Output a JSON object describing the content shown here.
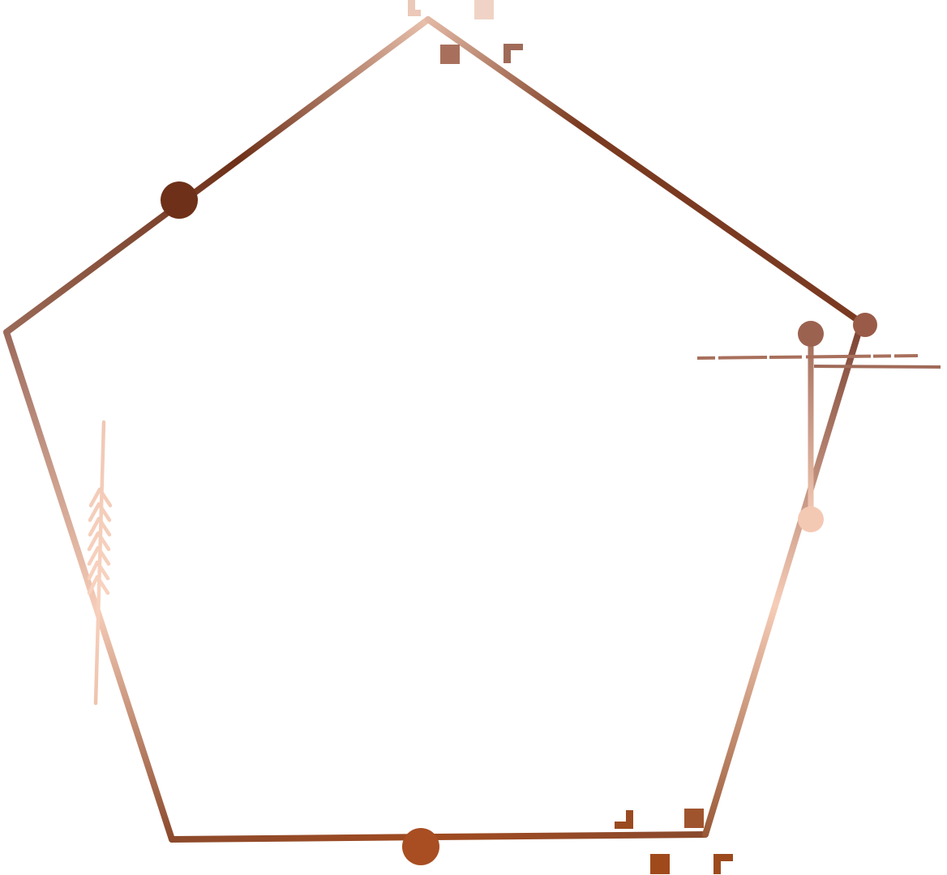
{
  "artwork": {
    "shape": "pentagon-frame",
    "elements": [
      "pentagon-outline",
      "edge-dots",
      "arrow-accent",
      "crosshair-accent",
      "corner-marks"
    ]
  },
  "colors": {
    "background": "#ffffff",
    "dark_brown": "#6e3018",
    "copper": "#8c4a2c",
    "rust": "#a84e22",
    "mauve": "#a06a58",
    "blush": "#f6cdb8",
    "peach": "#f2c9b4"
  }
}
